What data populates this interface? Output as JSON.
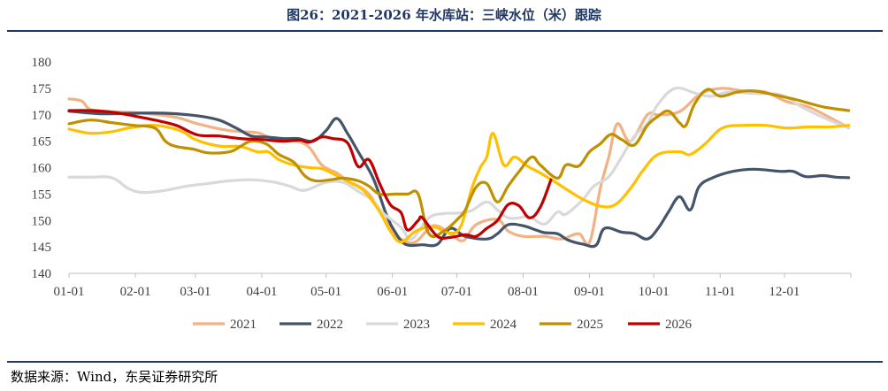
{
  "figure": {
    "title": "图26：2021-2026 年水库站：三峡水位（米）跟踪",
    "source": "数据来源：Wind，东吴证券研究所"
  },
  "chart_data": {
    "type": "line",
    "xlabel": "",
    "ylabel": "",
    "ylim": [
      140,
      180
    ],
    "yticks": [
      140,
      145,
      150,
      155,
      160,
      165,
      170,
      175,
      180
    ],
    "x_domain": [
      0,
      365
    ],
    "x_ticks": [
      {
        "label": "01-01",
        "day": 0
      },
      {
        "label": "02-01",
        "day": 31
      },
      {
        "label": "03-01",
        "day": 59
      },
      {
        "label": "04-01",
        "day": 90
      },
      {
        "label": "05-01",
        "day": 120
      },
      {
        "label": "06-01",
        "day": 151
      },
      {
        "label": "07-01",
        "day": 181
      },
      {
        "label": "08-01",
        "day": 212
      },
      {
        "label": "09-01",
        "day": 243
      },
      {
        "label": "10-01",
        "day": 273
      },
      {
        "label": "11-01",
        "day": 304
      },
      {
        "label": "12-01",
        "day": 334
      }
    ],
    "grid": false,
    "legend_position": "bottom",
    "series": [
      {
        "name": "2021",
        "color": "#f4b183",
        "points": [
          [
            0,
            173
          ],
          [
            6,
            172.6
          ],
          [
            10,
            171
          ],
          [
            20,
            170.6
          ],
          [
            35,
            170.3
          ],
          [
            50,
            169.5
          ],
          [
            60,
            168.3
          ],
          [
            75,
            167
          ],
          [
            88,
            166.6
          ],
          [
            95,
            165.5
          ],
          [
            110,
            164.5
          ],
          [
            118,
            160.5
          ],
          [
            125,
            159
          ],
          [
            130,
            157.5
          ],
          [
            140,
            155
          ],
          [
            150,
            148.5
          ],
          [
            156,
            146.3
          ],
          [
            162,
            146
          ],
          [
            170,
            149
          ],
          [
            178,
            147.5
          ],
          [
            184,
            146.2
          ],
          [
            190,
            149.2
          ],
          [
            200,
            150.2
          ],
          [
            205,
            148
          ],
          [
            212,
            147
          ],
          [
            222,
            147
          ],
          [
            230,
            146.5
          ],
          [
            238,
            147.5
          ],
          [
            243,
            145.8
          ],
          [
            248,
            156
          ],
          [
            252,
            162
          ],
          [
            256,
            168.3
          ],
          [
            262,
            165
          ],
          [
            270,
            170
          ],
          [
            275,
            170
          ],
          [
            285,
            170.6
          ],
          [
            295,
            174
          ],
          [
            305,
            175
          ],
          [
            315,
            174.5
          ],
          [
            325,
            174.3
          ],
          [
            335,
            172.5
          ],
          [
            345,
            171.5
          ],
          [
            355,
            169.5
          ],
          [
            364,
            167.5
          ]
        ]
      },
      {
        "name": "2022",
        "color": "#44546a",
        "points": [
          [
            0,
            170.7
          ],
          [
            15,
            170.2
          ],
          [
            30,
            170.3
          ],
          [
            45,
            170.3
          ],
          [
            60,
            169.8
          ],
          [
            70,
            169
          ],
          [
            78,
            167.5
          ],
          [
            85,
            166
          ],
          [
            92,
            165.8
          ],
          [
            100,
            165.5
          ],
          [
            107,
            165.5
          ],
          [
            114,
            165
          ],
          [
            120,
            167
          ],
          [
            125,
            169.3
          ],
          [
            130,
            166.5
          ],
          [
            135,
            163
          ],
          [
            142,
            158
          ],
          [
            148,
            151.3
          ],
          [
            152,
            148
          ],
          [
            157,
            145.5
          ],
          [
            165,
            145.4
          ],
          [
            172,
            145.5
          ],
          [
            178,
            148.5
          ],
          [
            185,
            147
          ],
          [
            195,
            146.5
          ],
          [
            200,
            147.5
          ],
          [
            205,
            149.2
          ],
          [
            212,
            149
          ],
          [
            218,
            148.2
          ],
          [
            222,
            147.7
          ],
          [
            228,
            147.5
          ],
          [
            233,
            146.3
          ],
          [
            240,
            145.5
          ],
          [
            246,
            145.3
          ],
          [
            250,
            148.5
          ],
          [
            258,
            147.8
          ],
          [
            264,
            147.5
          ],
          [
            270,
            146.5
          ],
          [
            275,
            148.5
          ],
          [
            280,
            151.7
          ],
          [
            285,
            154.5
          ],
          [
            290,
            152
          ],
          [
            294,
            156.3
          ],
          [
            300,
            158
          ],
          [
            310,
            159.3
          ],
          [
            320,
            159.7
          ],
          [
            332,
            159.3
          ],
          [
            338,
            159.3
          ],
          [
            344,
            158.3
          ],
          [
            352,
            158.5
          ],
          [
            358,
            158.2
          ],
          [
            364,
            158.1
          ]
        ]
      },
      {
        "name": "2023",
        "color": "#d9d9d9",
        "points": [
          [
            0,
            158.2
          ],
          [
            10,
            158.2
          ],
          [
            20,
            158.1
          ],
          [
            28,
            156
          ],
          [
            35,
            155.3
          ],
          [
            45,
            155.7
          ],
          [
            55,
            156.5
          ],
          [
            65,
            157
          ],
          [
            75,
            157.5
          ],
          [
            85,
            157.7
          ],
          [
            95,
            157.3
          ],
          [
            103,
            156.5
          ],
          [
            110,
            155.7
          ],
          [
            120,
            157.2
          ],
          [
            128,
            157.2
          ],
          [
            135,
            155.5
          ],
          [
            142,
            153.7
          ],
          [
            147,
            151.3
          ],
          [
            155,
            148.7
          ],
          [
            160,
            146.5
          ],
          [
            168,
            150.5
          ],
          [
            175,
            151.3
          ],
          [
            182,
            151.4
          ],
          [
            188,
            151.9
          ],
          [
            195,
            153.5
          ],
          [
            200,
            152
          ],
          [
            205,
            150.5
          ],
          [
            210,
            150.5
          ],
          [
            215,
            150.7
          ],
          [
            222,
            149.3
          ],
          [
            228,
            151.6
          ],
          [
            232,
            151.2
          ],
          [
            240,
            154
          ],
          [
            245,
            156.5
          ],
          [
            252,
            158.3
          ],
          [
            258,
            162
          ],
          [
            264,
            166
          ],
          [
            270,
            168.3
          ],
          [
            275,
            172
          ],
          [
            283,
            175
          ],
          [
            293,
            174
          ],
          [
            300,
            173.5
          ],
          [
            308,
            174.3
          ],
          [
            320,
            174
          ],
          [
            332,
            173.8
          ],
          [
            342,
            171.5
          ],
          [
            352,
            169.5
          ],
          [
            364,
            167.5
          ]
        ]
      },
      {
        "name": "2024",
        "color": "#ffc000",
        "points": [
          [
            0,
            167.3
          ],
          [
            10,
            166.5
          ],
          [
            20,
            166.8
          ],
          [
            28,
            167.5
          ],
          [
            40,
            168
          ],
          [
            52,
            167
          ],
          [
            58,
            165.5
          ],
          [
            65,
            164.5
          ],
          [
            72,
            164
          ],
          [
            80,
            164
          ],
          [
            88,
            163
          ],
          [
            93,
            163
          ],
          [
            98,
            161.5
          ],
          [
            105,
            160.5
          ],
          [
            112,
            160
          ],
          [
            118,
            159.8
          ],
          [
            125,
            158.5
          ],
          [
            132,
            157
          ],
          [
            138,
            155.5
          ],
          [
            145,
            151.7
          ],
          [
            150,
            148
          ],
          [
            155,
            145.9
          ],
          [
            162,
            148
          ],
          [
            170,
            148.8
          ],
          [
            178,
            147.6
          ],
          [
            183,
            149
          ],
          [
            188,
            156
          ],
          [
            192,
            160
          ],
          [
            195,
            162
          ],
          [
            198,
            166.5
          ],
          [
            203,
            160.5
          ],
          [
            208,
            162
          ],
          [
            214,
            160.3
          ],
          [
            220,
            159
          ],
          [
            228,
            157
          ],
          [
            233,
            155.7
          ],
          [
            240,
            154
          ],
          [
            248,
            152.7
          ],
          [
            255,
            153
          ],
          [
            262,
            156
          ],
          [
            268,
            159.5
          ],
          [
            275,
            162.5
          ],
          [
            285,
            163
          ],
          [
            290,
            162.5
          ],
          [
            297,
            164.5
          ],
          [
            305,
            167.5
          ],
          [
            315,
            168
          ],
          [
            325,
            168
          ],
          [
            335,
            167.5
          ],
          [
            345,
            167.7
          ],
          [
            355,
            167.7
          ],
          [
            364,
            168
          ]
        ]
      },
      {
        "name": "2025",
        "color": "#bf9000",
        "points": [
          [
            0,
            168.3
          ],
          [
            10,
            169
          ],
          [
            20,
            168.5
          ],
          [
            30,
            168
          ],
          [
            40,
            167.5
          ],
          [
            45,
            165
          ],
          [
            50,
            164
          ],
          [
            58,
            163.5
          ],
          [
            65,
            162.8
          ],
          [
            75,
            163
          ],
          [
            80,
            164
          ],
          [
            85,
            165
          ],
          [
            92,
            164.5
          ],
          [
            98,
            162.5
          ],
          [
            105,
            161
          ],
          [
            110,
            158.5
          ],
          [
            115,
            157.5
          ],
          [
            122,
            157.7
          ],
          [
            128,
            158
          ],
          [
            135,
            157.5
          ],
          [
            140,
            156.5
          ],
          [
            145,
            155
          ],
          [
            152,
            155
          ],
          [
            158,
            155
          ],
          [
            163,
            155
          ],
          [
            168,
            147.5
          ],
          [
            175,
            148
          ],
          [
            182,
            150.5
          ],
          [
            185,
            152
          ],
          [
            190,
            156.3
          ],
          [
            195,
            157
          ],
          [
            200,
            153.5
          ],
          [
            205,
            156.5
          ],
          [
            210,
            159.2
          ],
          [
            216,
            162
          ],
          [
            220,
            160.5
          ],
          [
            228,
            158
          ],
          [
            232,
            160.5
          ],
          [
            238,
            160.3
          ],
          [
            243,
            163
          ],
          [
            248,
            164.5
          ],
          [
            253,
            166.3
          ],
          [
            258,
            165.3
          ],
          [
            264,
            164.3
          ],
          [
            270,
            168
          ],
          [
            275,
            169.7
          ],
          [
            280,
            170.7
          ],
          [
            285,
            168.5
          ],
          [
            288,
            168
          ],
          [
            292,
            172
          ],
          [
            298,
            174.8
          ],
          [
            304,
            173.5
          ],
          [
            312,
            174.3
          ],
          [
            320,
            174.5
          ],
          [
            330,
            173.7
          ],
          [
            340,
            172.8
          ],
          [
            352,
            171.5
          ],
          [
            364,
            170.8
          ]
        ]
      },
      {
        "name": "2026",
        "color": "#c00000",
        "points": [
          [
            0,
            170.8
          ],
          [
            10,
            170.8
          ],
          [
            20,
            170.5
          ],
          [
            30,
            169.8
          ],
          [
            40,
            169
          ],
          [
            50,
            168
          ],
          [
            60,
            166.2
          ],
          [
            70,
            166
          ],
          [
            80,
            165.5
          ],
          [
            90,
            165.3
          ],
          [
            100,
            165
          ],
          [
            108,
            165.2
          ],
          [
            112,
            164.8
          ],
          [
            118,
            165.8
          ],
          [
            123,
            165.5
          ],
          [
            130,
            164.7
          ],
          [
            135,
            160.2
          ],
          [
            140,
            161.5
          ],
          [
            145,
            157
          ],
          [
            150,
            153
          ],
          [
            155,
            151.5
          ],
          [
            158,
            148.2
          ],
          [
            163,
            150
          ],
          [
            165,
            150.5
          ],
          [
            172,
            147
          ],
          [
            178,
            146.8
          ],
          [
            185,
            147.3
          ],
          [
            190,
            147
          ],
          [
            195,
            148.5
          ],
          [
            200,
            150
          ],
          [
            205,
            153
          ],
          [
            210,
            152.8
          ],
          [
            215,
            150.5
          ],
          [
            220,
            152.5
          ],
          [
            225,
            157.7
          ]
        ]
      }
    ]
  }
}
